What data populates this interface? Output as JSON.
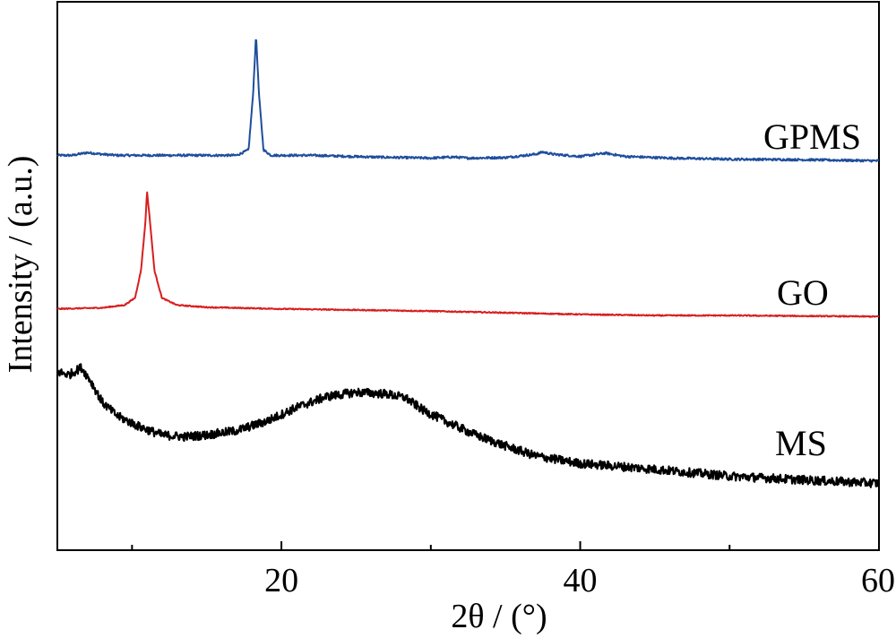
{
  "chart_data": {
    "type": "line",
    "xlabel": "2θ / (°)",
    "ylabel": "Intensity / (a.u.)",
    "xlim": [
      5,
      60
    ],
    "ylim": [
      0,
      1
    ],
    "x_ticks": [
      20,
      40,
      60
    ],
    "x_tick_labels": [
      "20",
      "40",
      "60"
    ],
    "x_minor_ticks": [
      10,
      30,
      50
    ],
    "y_ticks": [],
    "grid": false,
    "legend": "none",
    "series": [
      {
        "name": "GPMS",
        "color": "#1f4e9c",
        "points": [
          [
            5,
            0.72
          ],
          [
            6,
            0.72
          ],
          [
            7,
            0.725
          ],
          [
            8,
            0.722
          ],
          [
            9,
            0.72
          ],
          [
            10,
            0.72
          ],
          [
            12,
            0.72
          ],
          [
            14,
            0.72
          ],
          [
            16,
            0.72
          ],
          [
            17,
            0.72
          ],
          [
            17.8,
            0.73
          ],
          [
            18.1,
            0.83
          ],
          [
            18.3,
            0.94
          ],
          [
            18.5,
            0.83
          ],
          [
            18.8,
            0.73
          ],
          [
            19.3,
            0.72
          ],
          [
            22,
            0.72
          ],
          [
            26,
            0.717
          ],
          [
            30,
            0.715
          ],
          [
            31.5,
            0.717
          ],
          [
            32.5,
            0.715
          ],
          [
            35,
            0.716
          ],
          [
            37,
            0.722
          ],
          [
            37.5,
            0.726
          ],
          [
            38.2,
            0.722
          ],
          [
            40,
            0.718
          ],
          [
            41.7,
            0.724
          ],
          [
            43,
            0.718
          ],
          [
            46,
            0.715
          ],
          [
            50,
            0.713
          ],
          [
            55,
            0.712
          ],
          [
            60,
            0.71
          ]
        ]
      },
      {
        "name": "GO",
        "color": "#d81e1e",
        "points": [
          [
            5,
            0.44
          ],
          [
            8,
            0.442
          ],
          [
            9.5,
            0.447
          ],
          [
            10.2,
            0.46
          ],
          [
            10.6,
            0.51
          ],
          [
            10.9,
            0.6
          ],
          [
            11.0,
            0.655
          ],
          [
            11.2,
            0.6
          ],
          [
            11.5,
            0.51
          ],
          [
            12,
            0.46
          ],
          [
            13,
            0.447
          ],
          [
            15,
            0.443
          ],
          [
            20,
            0.44
          ],
          [
            25,
            0.438
          ],
          [
            30,
            0.436
          ],
          [
            35,
            0.433
          ],
          [
            40,
            0.43
          ],
          [
            45,
            0.428
          ],
          [
            50,
            0.428
          ],
          [
            55,
            0.427
          ],
          [
            60,
            0.426
          ]
        ]
      },
      {
        "name": "MS",
        "color": "#000000",
        "points": [
          [
            5,
            0.325
          ],
          [
            5.8,
            0.32
          ],
          [
            6.6,
            0.333
          ],
          [
            7.2,
            0.31
          ],
          [
            8,
            0.27
          ],
          [
            9,
            0.245
          ],
          [
            10.5,
            0.225
          ],
          [
            12,
            0.21
          ],
          [
            13.5,
            0.207
          ],
          [
            15,
            0.21
          ],
          [
            17,
            0.218
          ],
          [
            19,
            0.235
          ],
          [
            21,
            0.26
          ],
          [
            23,
            0.28
          ],
          [
            25,
            0.288
          ],
          [
            27,
            0.285
          ],
          [
            28.3,
            0.278
          ],
          [
            29.5,
            0.255
          ],
          [
            31,
            0.235
          ],
          [
            33,
            0.21
          ],
          [
            35,
            0.19
          ],
          [
            37,
            0.172
          ],
          [
            40,
            0.158
          ],
          [
            43,
            0.152
          ],
          [
            46,
            0.145
          ],
          [
            50,
            0.135
          ],
          [
            55,
            0.128
          ],
          [
            60,
            0.122
          ]
        ]
      }
    ],
    "noise": {
      "GPMS": 0.002,
      "GO": 0.001,
      "MS": 0.008
    }
  }
}
